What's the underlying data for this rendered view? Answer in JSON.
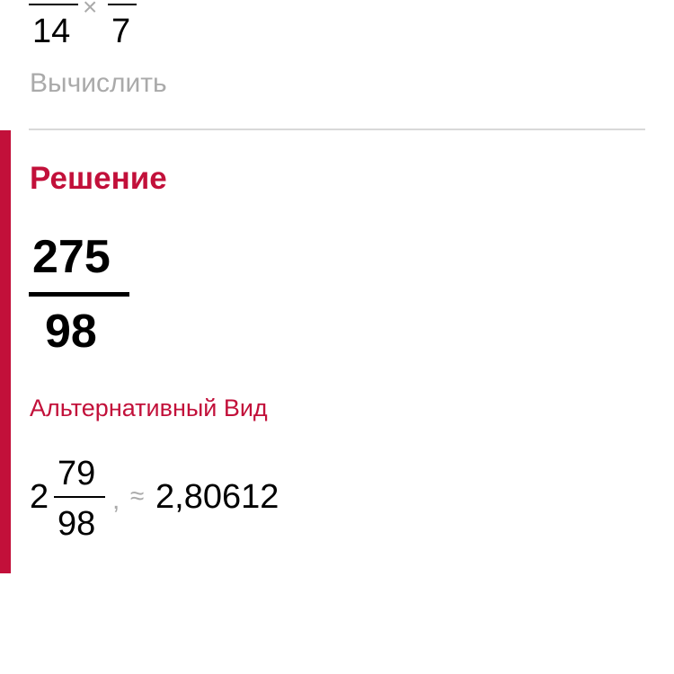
{
  "problem": {
    "left_denominator": "14",
    "operator": "×",
    "right_denominator": "7"
  },
  "calculate_label": "Вычислить",
  "solution": {
    "heading": "Решение",
    "numerator": "275",
    "denominator": "98",
    "alt_label": "Альтернативный Вид",
    "mixed_whole": "2",
    "mixed_numerator": "79",
    "mixed_denominator": "98",
    "separator": ",",
    "approx_symbol": "≈",
    "decimal": "2,80612"
  },
  "colors": {
    "accent": "#c2103a",
    "muted": "#aaaaaa",
    "divider": "#d9d9d9"
  }
}
